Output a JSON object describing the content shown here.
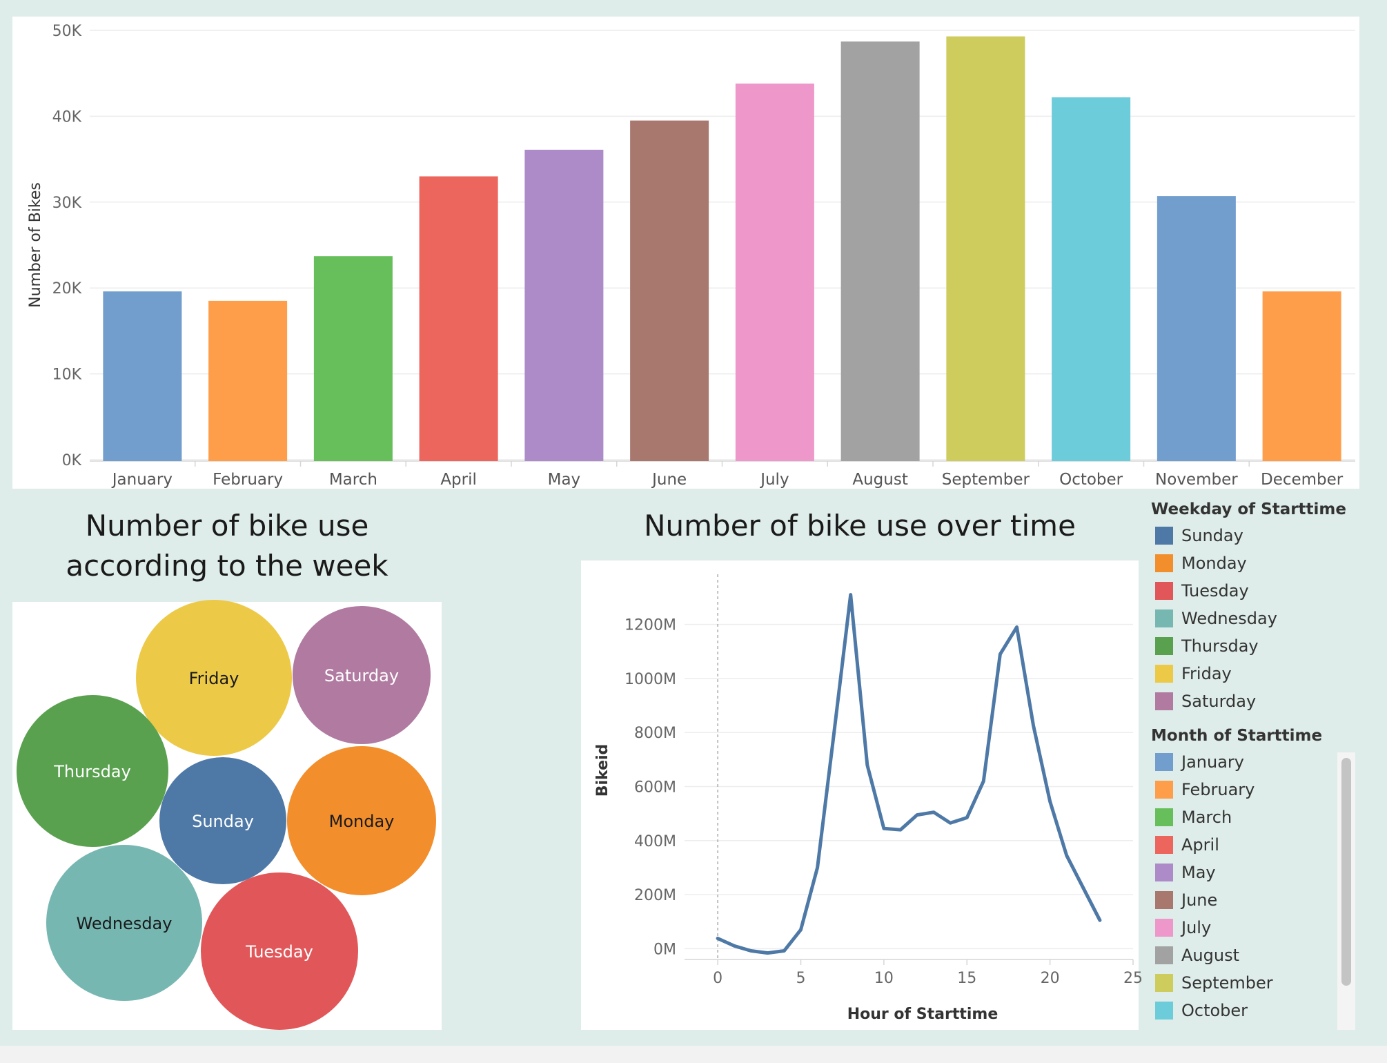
{
  "bar_chart": {
    "chart_data": {
      "type": "bar",
      "title": "",
      "xlabel": "",
      "ylabel": "Number of Bikes",
      "categories": [
        "January",
        "February",
        "March",
        "April",
        "May",
        "June",
        "July",
        "August",
        "September",
        "October",
        "November",
        "December"
      ],
      "values": [
        19600,
        18500,
        23700,
        33000,
        36100,
        39500,
        43800,
        48700,
        49300,
        42200,
        30700,
        19600
      ],
      "colors": [
        "#729ece",
        "#ff9e4a",
        "#67bf5c",
        "#ed665d",
        "#ad8bc9",
        "#a8786e",
        "#ed97ca",
        "#a2a2a2",
        "#cdcc5d",
        "#6dccda",
        "#729ece",
        "#ff9e4a"
      ],
      "ylim": [
        0,
        50000
      ],
      "yticks": [
        0,
        10000,
        20000,
        30000,
        40000,
        50000
      ],
      "ytick_labels": [
        "0K",
        "10K",
        "20K",
        "30K",
        "40K",
        "50K"
      ],
      "grid": true
    }
  },
  "bubble_chart": {
    "title": "Number of bike use according to the week",
    "chart_data": {
      "type": "bubble",
      "labels": [
        "Friday",
        "Saturday",
        "Thursday",
        "Sunday",
        "Monday",
        "Wednesday",
        "Tuesday"
      ],
      "colors": [
        "#edc948",
        "#b07aa1",
        "#59a14f",
        "#4e79a7",
        "#f28e2b",
        "#76b7b2",
        "#e15759"
      ],
      "label_colors": [
        "#1a1a1a",
        "#ffffff",
        "#ffffff",
        "#ffffff",
        "#1a1a1a",
        "#1a1a1a",
        "#ffffff"
      ]
    }
  },
  "line_chart": {
    "title": "Number of bike use over time",
    "chart_data": {
      "type": "line",
      "xlabel": "Hour of Starttime",
      "ylabel": "Bikeid",
      "x": [
        0,
        1,
        2,
        3,
        4,
        5,
        6,
        7,
        8,
        9,
        10,
        11,
        12,
        13,
        14,
        15,
        16,
        17,
        18,
        19,
        20,
        21,
        22,
        23
      ],
      "series": [
        {
          "values": [
            38,
            10,
            -8,
            -16,
            -8,
            70,
            300,
            800,
            1310,
            680,
            445,
            440,
            495,
            505,
            465,
            485,
            620,
            1090,
            1190,
            825,
            545,
            345,
            225,
            105
          ],
          "color": "#4e79a7"
        }
      ],
      "xlim": [
        -2,
        25
      ],
      "ylim": [
        -40,
        1360
      ],
      "xticks": [
        0,
        5,
        10,
        15,
        20,
        25
      ],
      "xtick_labels": [
        "0",
        "5",
        "10",
        "15",
        "20",
        "25"
      ],
      "yticks": [
        0,
        200,
        400,
        600,
        800,
        1000,
        1200
      ],
      "ytick_labels": [
        "0M",
        "200M",
        "400M",
        "600M",
        "800M",
        "1000M",
        "1200M"
      ],
      "zero_line": true,
      "grid": true
    }
  },
  "legend": {
    "weekday_title": "Weekday of Starttime",
    "weekday_items": [
      {
        "label": "Sunday",
        "color": "#4e79a7"
      },
      {
        "label": "Monday",
        "color": "#f28e2b"
      },
      {
        "label": "Tuesday",
        "color": "#e15759"
      },
      {
        "label": "Wednesday",
        "color": "#76b7b2"
      },
      {
        "label": "Thursday",
        "color": "#59a14f"
      },
      {
        "label": "Friday",
        "color": "#edc948"
      },
      {
        "label": "Saturday",
        "color": "#b07aa1"
      }
    ],
    "month_title": "Month of Starttime",
    "month_items": [
      {
        "label": "January",
        "color": "#729ece"
      },
      {
        "label": "February",
        "color": "#ff9e4a"
      },
      {
        "label": "March",
        "color": "#67bf5c"
      },
      {
        "label": "April",
        "color": "#ed665d"
      },
      {
        "label": "May",
        "color": "#ad8bc9"
      },
      {
        "label": "June",
        "color": "#a8786e"
      },
      {
        "label": "July",
        "color": "#ed97ca"
      },
      {
        "label": "August",
        "color": "#a2a2a2"
      },
      {
        "label": "September",
        "color": "#cdcc5d"
      },
      {
        "label": "October",
        "color": "#6dccda"
      }
    ]
  }
}
